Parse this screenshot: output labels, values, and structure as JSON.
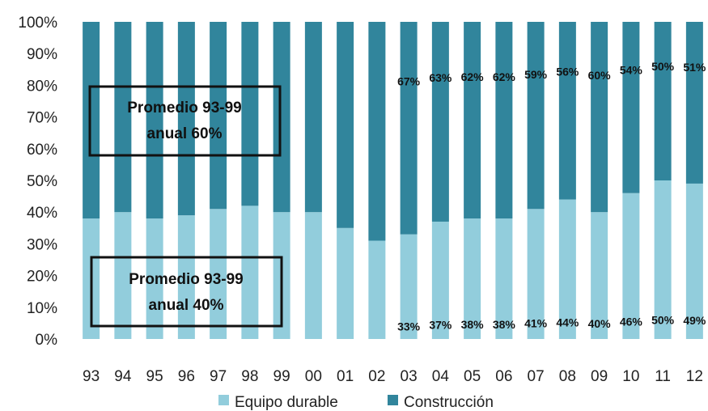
{
  "chart_data": {
    "type": "bar",
    "stacked": true,
    "percent_stacked": true,
    "categories": [
      "93",
      "94",
      "95",
      "96",
      "97",
      "98",
      "99",
      "00",
      "01",
      "02",
      "03",
      "04",
      "05",
      "06",
      "07",
      "08",
      "09",
      "10",
      "11",
      "12"
    ],
    "series": [
      {
        "name": "Equipo durable",
        "color": "#92CDDC",
        "values": [
          38,
          40,
          38,
          39,
          41,
          42,
          40,
          40,
          35,
          31,
          33,
          37,
          38,
          38,
          41,
          44,
          40,
          46,
          50,
          49
        ],
        "labels": [
          "",
          "",
          "",
          "",
          "",
          "",
          "",
          "",
          "",
          "",
          "33%",
          "37%",
          "38%",
          "38%",
          "41%",
          "44%",
          "40%",
          "46%",
          "50%",
          "49%"
        ]
      },
      {
        "name": "Construcción",
        "color": "#31859C",
        "values": [
          62,
          60,
          62,
          61,
          59,
          58,
          60,
          60,
          65,
          69,
          67,
          63,
          62,
          62,
          59,
          56,
          60,
          54,
          50,
          51
        ],
        "labels": [
          "",
          "",
          "",
          "",
          "",
          "",
          "",
          "",
          "",
          "",
          "67%",
          "63%",
          "62%",
          "62%",
          "59%",
          "56%",
          "60%",
          "54%",
          "50%",
          "51%"
        ]
      }
    ],
    "y_ticks": [
      "0%",
      "10%",
      "20%",
      "30%",
      "40%",
      "50%",
      "60%",
      "70%",
      "80%",
      "90%",
      "100%"
    ],
    "ylim": [
      0,
      100
    ],
    "grid": false,
    "legend_position": "bottom",
    "annotations": [
      {
        "line1": "Promedio 93-99",
        "line2": "anual 60%"
      },
      {
        "line1": "Promedio 93-99",
        "line2": "anual 40%"
      }
    ]
  }
}
